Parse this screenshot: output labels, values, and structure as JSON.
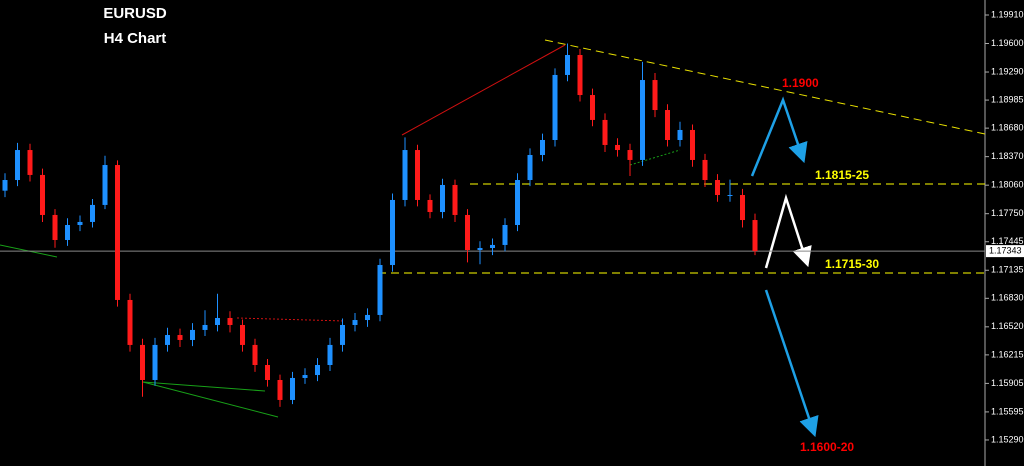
{
  "chart_data": {
    "type": "candlestick",
    "title": "EURUSD",
    "subtitle": "H4 Chart",
    "up_color": "#1e90ff",
    "down_color": "#ff1a1a",
    "open": [
      1.18,
      1.18116,
      1.18442,
      1.18171,
      1.17736,
      1.17464,
      1.17627,
      1.1766,
      1.17845,
      1.18279,
      1.16812,
      1.16323,
      1.15942,
      1.16323,
      1.16431,
      1.16377,
      1.16486,
      1.1654,
      1.16616,
      1.1654,
      1.16323,
      1.16105,
      1.15942,
      1.15725,
      1.15964,
      1.15996,
      1.16105,
      1.16323,
      1.1654,
      1.16594,
      1.16649,
      1.17192,
      1.17899,
      1.18442,
      1.17899,
      1.17768,
      1.18062,
      1.17736,
      1.17355,
      1.17377,
      1.1741,
      1.17627,
      1.18116,
      1.18388,
      1.18551,
      1.19258,
      1.19475,
      1.1904,
      1.18769,
      1.18497,
      1.18442,
      1.18334,
      1.19203,
      1.18877,
      1.18551,
      1.1866,
      1.18334,
      1.18116,
      1.17953,
      1.17953,
      1.17681
    ],
    "high": [
      1.1819,
      1.1852,
      1.1851,
      1.1824,
      1.178,
      1.177,
      1.1773,
      1.1791,
      1.1838,
      1.1833,
      1.1688,
      1.1639,
      1.164,
      1.1651,
      1.165,
      1.1656,
      1.167,
      1.1688,
      1.1669,
      1.166,
      1.1639,
      1.1617,
      1.16,
      1.1603,
      1.1607,
      1.1618,
      1.164,
      1.1661,
      1.1667,
      1.1672,
      1.1726,
      1.1797,
      1.1858,
      1.185,
      1.1796,
      1.1813,
      1.1812,
      1.178,
      1.1745,
      1.1748,
      1.177,
      1.1819,
      1.1846,
      1.1862,
      1.1933,
      1.196,
      1.1954,
      1.1911,
      1.1884,
      1.1857,
      1.1851,
      1.194,
      1.1928,
      1.1894,
      1.1875,
      1.1872,
      1.184,
      1.1818,
      1.1812,
      1.1802,
      1.1775
    ],
    "low": [
      1.1793,
      1.1805,
      1.181,
      1.1766,
      1.1738,
      1.174,
      1.1756,
      1.176,
      1.178,
      1.1674,
      1.1625,
      1.1576,
      1.1588,
      1.1625,
      1.163,
      1.1631,
      1.1642,
      1.1647,
      1.1646,
      1.1625,
      1.1603,
      1.1587,
      1.1565,
      1.1568,
      1.159,
      1.1593,
      1.1604,
      1.1625,
      1.1647,
      1.1652,
      1.1658,
      1.1712,
      1.1783,
      1.1783,
      1.177,
      1.177,
      1.1766,
      1.1722,
      1.172,
      1.173,
      1.1734,
      1.1756,
      1.1805,
      1.1832,
      1.1848,
      1.1919,
      1.1897,
      1.187,
      1.1842,
      1.1837,
      1.1816,
      1.1827,
      1.188,
      1.1848,
      1.1848,
      1.1826,
      1.1804,
      1.1788,
      1.1788,
      1.176,
      1.173
    ],
    "close": [
      1.18116,
      1.18442,
      1.18171,
      1.17736,
      1.17464,
      1.17627,
      1.1766,
      1.17845,
      1.18279,
      1.16812,
      1.16323,
      1.15942,
      1.16323,
      1.16431,
      1.16377,
      1.16486,
      1.1654,
      1.16616,
      1.1654,
      1.16323,
      1.16105,
      1.15942,
      1.15725,
      1.15964,
      1.15996,
      1.16105,
      1.16323,
      1.1654,
      1.16594,
      1.16649,
      1.17192,
      1.17899,
      1.18442,
      1.17899,
      1.17768,
      1.18062,
      1.17736,
      1.17355,
      1.17377,
      1.1741,
      1.17627,
      1.18116,
      1.18388,
      1.18551,
      1.19258,
      1.19475,
      1.1904,
      1.18769,
      1.18497,
      1.18442,
      1.18334,
      1.19203,
      1.18877,
      1.18551,
      1.1866,
      1.18334,
      1.18116,
      1.17953,
      1.17953,
      1.17681,
      1.17343
    ],
    "ylim": [
      1.15007,
      1.20073
    ],
    "yticks": [
      {
        "value": 1.1991,
        "label": "1.19910"
      },
      {
        "value": 1.196,
        "label": "1.19600"
      },
      {
        "value": 1.1929,
        "label": "1.19290"
      },
      {
        "value": 1.18985,
        "label": "1.18985"
      },
      {
        "value": 1.1868,
        "label": "1.18680"
      },
      {
        "value": 1.1837,
        "label": "1.18370"
      },
      {
        "value": 1.1806,
        "label": "1.18060"
      },
      {
        "value": 1.1775,
        "label": "1.17750"
      },
      {
        "value": 1.17445,
        "label": "1.17445"
      },
      {
        "value": 1.17135,
        "label": "1.17135"
      },
      {
        "value": 1.1683,
        "label": "1.16830"
      },
      {
        "value": 1.1652,
        "label": "1.16520"
      },
      {
        "value": 1.16215,
        "label": "1.16215"
      },
      {
        "value": 1.15905,
        "label": "1.15905"
      },
      {
        "value": 1.15595,
        "label": "1.15595"
      },
      {
        "value": 1.1529,
        "label": "1.15290"
      }
    ],
    "last_price": {
      "value": 1.17343,
      "label": "1.17343"
    },
    "levels": [
      {
        "value": 1.18073,
        "label": "1.1815-25",
        "color": "#ffff00"
      },
      {
        "value": 1.17105,
        "label": "1.1715-30",
        "color": "#ffff00"
      }
    ],
    "annotations": [
      {
        "text": "1.1900",
        "color": "#ff0000"
      },
      {
        "text": "1.1600-20",
        "color": "#ff0000"
      }
    ]
  }
}
